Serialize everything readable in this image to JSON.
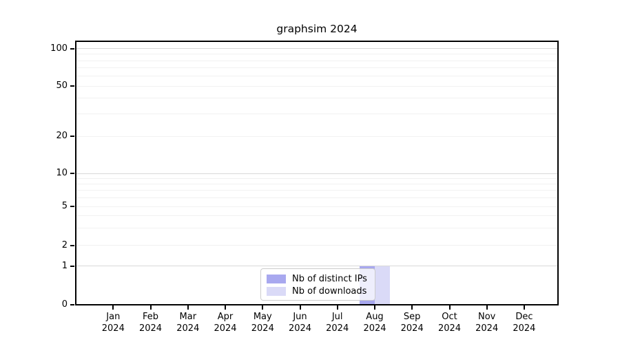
{
  "chart_data": {
    "type": "bar",
    "title": "graphsim 2024",
    "categories": [
      "Jan 2024",
      "Feb 2024",
      "Mar 2024",
      "Apr 2024",
      "May 2024",
      "Jun 2024",
      "Jul 2024",
      "Aug 2024",
      "Sep 2024",
      "Oct 2024",
      "Nov 2024",
      "Dec 2024"
    ],
    "series": [
      {
        "name": "Nb of distinct IPs",
        "color": "#a8a8ef",
        "values": [
          0,
          0,
          0,
          0,
          0,
          0,
          0,
          1,
          0,
          0,
          0,
          0
        ]
      },
      {
        "name": "Nb of downloads",
        "color": "#dadaf7",
        "values": [
          0,
          0,
          0,
          0,
          0,
          0,
          0,
          1,
          0,
          0,
          0,
          0
        ]
      }
    ],
    "y_axis": {
      "ticks": [
        100,
        50,
        20,
        10,
        5,
        2,
        1,
        0
      ],
      "scale": "symlog",
      "ylim": [
        0,
        110
      ]
    },
    "xlabel": "",
    "ylabel": "",
    "grid": true,
    "legend_position": "bottom-center"
  },
  "colors": {
    "major_grid": "#d8d8d8",
    "minor_grid": "#f1f1f1",
    "spine": "#000000",
    "legend_border": "#cccccc",
    "background": "#ffffff"
  }
}
